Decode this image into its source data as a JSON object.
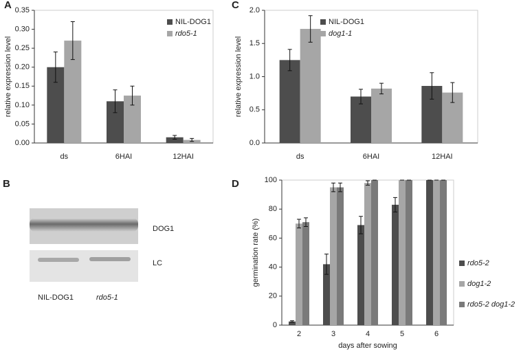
{
  "chart_data": [
    {
      "type": "bar",
      "label": "A",
      "ylabel": "relative expression level",
      "categories": [
        "ds",
        "6HAI",
        "12HAI"
      ],
      "series": [
        {
          "name": "NIL-DOG1",
          "color": "#4d4d4d",
          "italic": false,
          "values": [
            0.2,
            0.11,
            0.015
          ],
          "errors": [
            0.04,
            0.03,
            0.005
          ]
        },
        {
          "name": "rdo5-1",
          "color": "#a6a6a6",
          "italic": true,
          "values": [
            0.27,
            0.125,
            0.008
          ],
          "errors": [
            0.05,
            0.025,
            0.004
          ]
        }
      ],
      "ylim": [
        0,
        0.35
      ],
      "yticks": [
        {
          "value": 0,
          "label": "0.00"
        },
        0.05,
        {
          "value": 0.1,
          "label": "0.10"
        },
        0.15,
        {
          "value": 0.2,
          "label": "0.20"
        },
        0.25,
        {
          "value": 0.3,
          "label": "0.30"
        },
        0.35
      ],
      "legend": "top-right"
    },
    {
      "type": "bar",
      "label": "C",
      "ylabel": "relative expression level",
      "categories": [
        "ds",
        "6HAI",
        "12HAI"
      ],
      "series": [
        {
          "name": "NIL-DOG1",
          "color": "#4d4d4d",
          "italic": false,
          "values": [
            1.25,
            0.7,
            0.86
          ],
          "errors": [
            0.16,
            0.11,
            0.2
          ]
        },
        {
          "name": "dog1-1",
          "color": "#a6a6a6",
          "italic": true,
          "values": [
            1.72,
            0.82,
            0.76
          ],
          "errors": [
            0.2,
            0.08,
            0.15
          ]
        }
      ],
      "ylim": [
        0,
        2
      ],
      "yticks": [
        {
          "value": 0,
          "label": "0.0"
        },
        0.5,
        {
          "value": 1,
          "label": "1.0"
        },
        1.5,
        {
          "value": 2,
          "label": "2.0"
        }
      ],
      "legend": "top-right"
    },
    {
      "type": "bar",
      "label": "D",
      "ylabel": "germination rate (%)",
      "xlabel": "days after sowing",
      "categories": [
        "2",
        "3",
        "4",
        "5",
        "6"
      ],
      "series": [
        {
          "name": "rdo5-2",
          "color": "#4d4d4d",
          "italic": true,
          "values": [
            2.5,
            42,
            69,
            83,
            100
          ],
          "errors": [
            0.5,
            7,
            6,
            5,
            0
          ]
        },
        {
          "name": "dog1-2",
          "color": "#a6a6a6",
          "italic": true,
          "values": [
            70,
            95,
            98,
            100,
            100
          ],
          "errors": [
            3,
            3,
            1.5,
            0,
            0
          ]
        },
        {
          "name": "rdo5-2 dog1-2",
          "color": "#7a7a7a",
          "italic": true,
          "values": [
            71,
            95,
            100,
            100,
            100
          ],
          "errors": [
            3,
            3,
            0,
            0,
            0
          ]
        }
      ],
      "ylim": [
        0,
        100
      ],
      "yticks": [
        0,
        20,
        40,
        60,
        80,
        100
      ],
      "legend": "right"
    }
  ],
  "blot": {
    "label": "B",
    "bands": [
      "DOG1",
      "LC"
    ],
    "lanes": [
      "NIL-DOG1",
      "rdo5-1"
    ]
  }
}
